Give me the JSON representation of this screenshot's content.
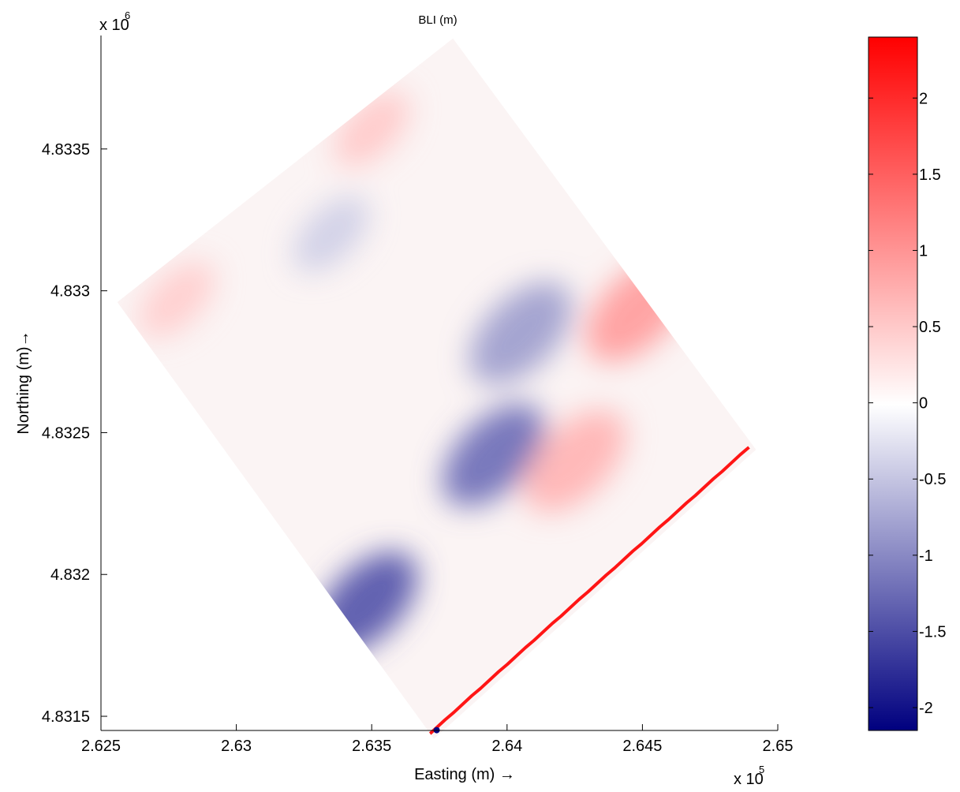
{
  "chart_data": {
    "type": "heatmap",
    "title": "BLI (m)",
    "xlabel": "Easting (m) →",
    "ylabel": "Northing (m)→",
    "x_exponent_label": "x 10",
    "x_exponent": "5",
    "y_exponent_label": "x 10",
    "y_exponent": "6",
    "xlim": [
      262500,
      265000
    ],
    "ylim": [
      4831450,
      4833900
    ],
    "x_ticks": [
      262500,
      263000,
      263500,
      264000,
      264500,
      265000
    ],
    "x_tick_labels": [
      "2.625",
      "2.63",
      "2.635",
      "2.64",
      "2.645",
      "2.65"
    ],
    "y_ticks": [
      4831500,
      4832000,
      4832500,
      4833000,
      4833500
    ],
    "y_tick_labels": [
      "4.8315",
      "4.832",
      "4.8325",
      "4.833",
      "4.8335"
    ],
    "colorbar": {
      "clim": [
        -2.15,
        2.4
      ],
      "ticks": [
        -2,
        -1.5,
        -1,
        -0.5,
        0,
        0.5,
        1,
        1.5,
        2
      ],
      "tick_labels": [
        "-2",
        "-1.5",
        "-1",
        "-0.5",
        "0",
        "0.5",
        "1",
        "1.5",
        "2"
      ],
      "colormap": "blue-white-red",
      "colors": {
        "low": "#00007f",
        "mid": "#ffffff",
        "high": "#ff0000"
      }
    },
    "domain_corners": [
      {
        "x": 263800,
        "y": 4833890
      },
      {
        "x": 264920,
        "y": 4832440
      },
      {
        "x": 263730,
        "y": 4831420
      },
      {
        "x": 262560,
        "y": 4832960
      }
    ],
    "regions": [
      {
        "feature": "negative channel core",
        "x": 263950,
        "y": 4832420,
        "value": -1.2
      },
      {
        "feature": "negative channel lower end",
        "x": 263480,
        "y": 4831900,
        "value": -1.4
      },
      {
        "feature": "negative channel upper part",
        "x": 264050,
        "y": 4832850,
        "value": -0.8
      },
      {
        "feature": "positive shoal east",
        "x": 264480,
        "y": 4832930,
        "value": 0.9
      },
      {
        "feature": "positive ridge",
        "x": 264250,
        "y": 4832400,
        "value": 0.7
      },
      {
        "feature": "positive patch north",
        "x": 263500,
        "y": 4833570,
        "value": 0.5
      },
      {
        "feature": "negative patch northwest",
        "x": 263350,
        "y": 4833200,
        "value": -0.4
      },
      {
        "feature": "positive patch west",
        "x": 262780,
        "y": 4832970,
        "value": 0.45
      },
      {
        "feature": "shoreline strip maximum",
        "x": 264640,
        "y": 4832150,
        "value": 2.2
      },
      {
        "feature": "southern tip minimum",
        "x": 263740,
        "y": 4831440,
        "value": -2.1
      }
    ]
  }
}
